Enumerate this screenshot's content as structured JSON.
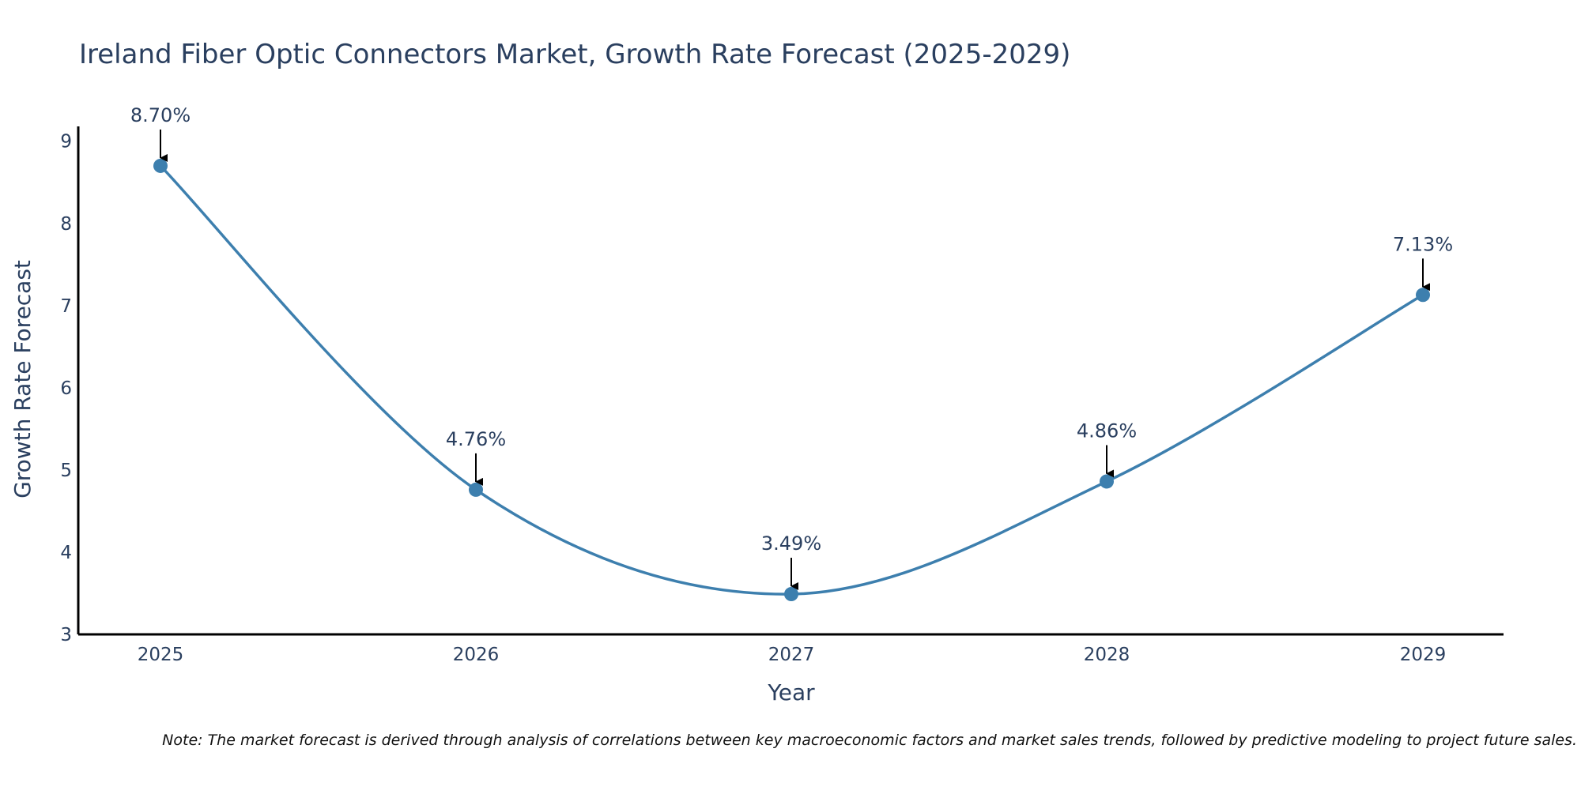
{
  "colors": {
    "line": "#3d7fae",
    "marker": "#3d7fae",
    "text": "#2a3f5f",
    "axis": "#000000",
    "arrow": "#000000"
  },
  "chart_data": {
    "type": "line",
    "title": "Ireland Fiber Optic Connectors Market, Growth Rate Forecast (2025-2029)",
    "xlabel": "Year",
    "ylabel": "Growth Rate Forecast",
    "x": [
      "2025",
      "2026",
      "2027",
      "2028",
      "2029"
    ],
    "series": [
      {
        "name": "Growth Rate Forecast",
        "values": [
          8.7,
          4.76,
          3.49,
          4.86,
          7.13
        ]
      }
    ],
    "data_labels": [
      "8.70%",
      "4.76%",
      "3.49%",
      "4.86%",
      "7.13%"
    ],
    "ylim": [
      3,
      9.18
    ],
    "yticks": [
      "3",
      "4",
      "5",
      "6",
      "7",
      "8",
      "9"
    ],
    "grid": false,
    "legend": "none",
    "note": "Note: The market forecast is derived through analysis of correlations between key macroeconomic factors and market sales trends, followed by predictive modeling to project future sales."
  }
}
